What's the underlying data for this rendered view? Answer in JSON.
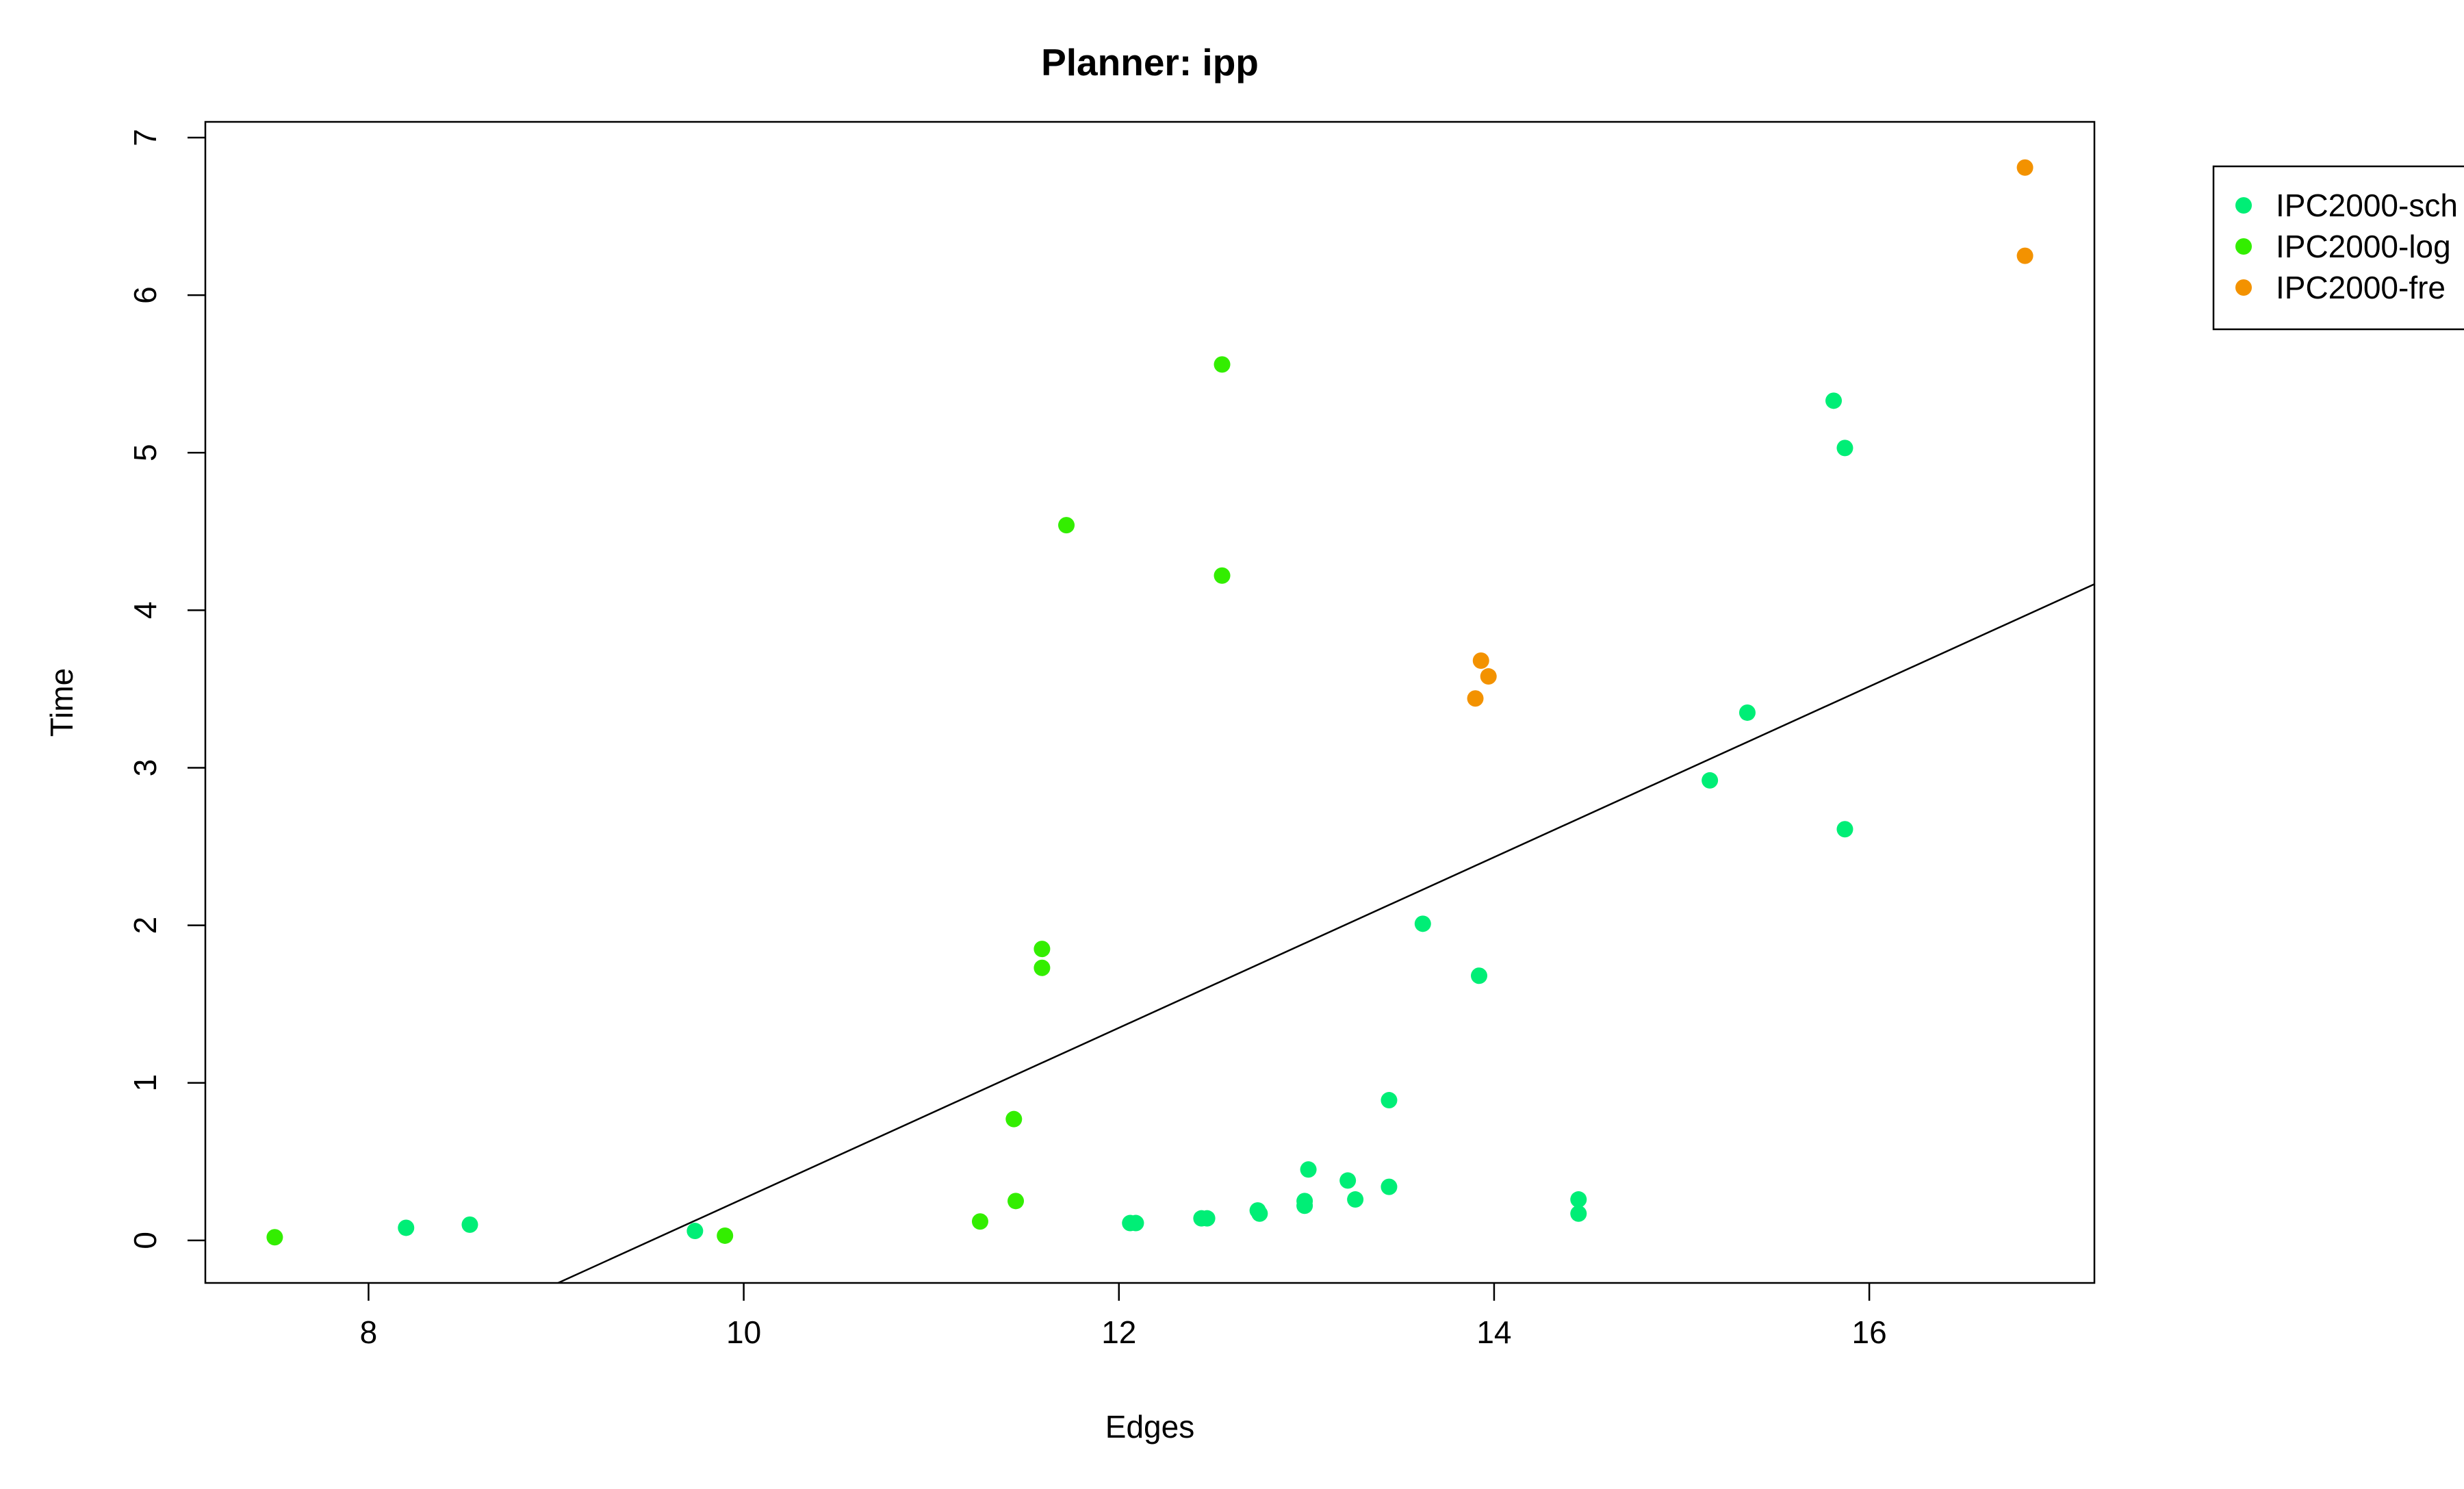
{
  "chart_data": {
    "type": "scatter",
    "title": "Planner: ipp",
    "xlabel": "Edges",
    "ylabel": "Time",
    "xlim": [
      7.13,
      17.2
    ],
    "ylim": [
      -0.27,
      7.1
    ],
    "xticks": [
      8,
      10,
      12,
      14,
      16
    ],
    "yticks": [
      0,
      1,
      2,
      3,
      4,
      5,
      6,
      7
    ],
    "legend_position": "top-right",
    "grid": false,
    "series": [
      {
        "name": "IPC2000-sch",
        "color": "#00EE76",
        "points": [
          [
            8.2,
            0.08
          ],
          [
            8.54,
            0.1
          ],
          [
            9.74,
            0.06
          ],
          [
            12.06,
            0.11
          ],
          [
            12.09,
            0.11
          ],
          [
            12.44,
            0.14
          ],
          [
            12.47,
            0.14
          ],
          [
            12.74,
            0.19
          ],
          [
            12.75,
            0.17
          ],
          [
            12.99,
            0.22
          ],
          [
            12.99,
            0.25
          ],
          [
            13.01,
            0.45
          ],
          [
            13.22,
            0.38
          ],
          [
            13.26,
            0.26
          ],
          [
            13.44,
            0.34
          ],
          [
            13.44,
            0.89
          ],
          [
            13.62,
            2.01
          ],
          [
            13.92,
            1.68
          ],
          [
            14.45,
            0.26
          ],
          [
            14.45,
            0.17
          ],
          [
            15.15,
            2.92
          ],
          [
            15.35,
            3.35
          ],
          [
            15.81,
            5.33
          ],
          [
            15.87,
            5.03
          ],
          [
            15.87,
            2.61
          ]
        ]
      },
      {
        "name": "IPC2000-log",
        "color": "#33EE00",
        "points": [
          [
            7.5,
            0.02
          ],
          [
            9.9,
            0.03
          ],
          [
            11.26,
            0.12
          ],
          [
            11.44,
            0.77
          ],
          [
            11.45,
            0.25
          ],
          [
            11.59,
            1.85
          ],
          [
            11.59,
            1.73
          ],
          [
            11.72,
            4.54
          ],
          [
            12.55,
            5.56
          ],
          [
            12.55,
            4.22
          ]
        ]
      },
      {
        "name": "IPC2000-fre",
        "color": "#F39200",
        "points": [
          [
            13.9,
            3.44
          ],
          [
            13.93,
            3.68
          ],
          [
            13.97,
            3.58
          ],
          [
            16.83,
            6.81
          ],
          [
            16.83,
            6.25
          ]
        ]
      }
    ],
    "regression_line": {
      "intercept": -5.15,
      "slope": 0.5416
    }
  }
}
